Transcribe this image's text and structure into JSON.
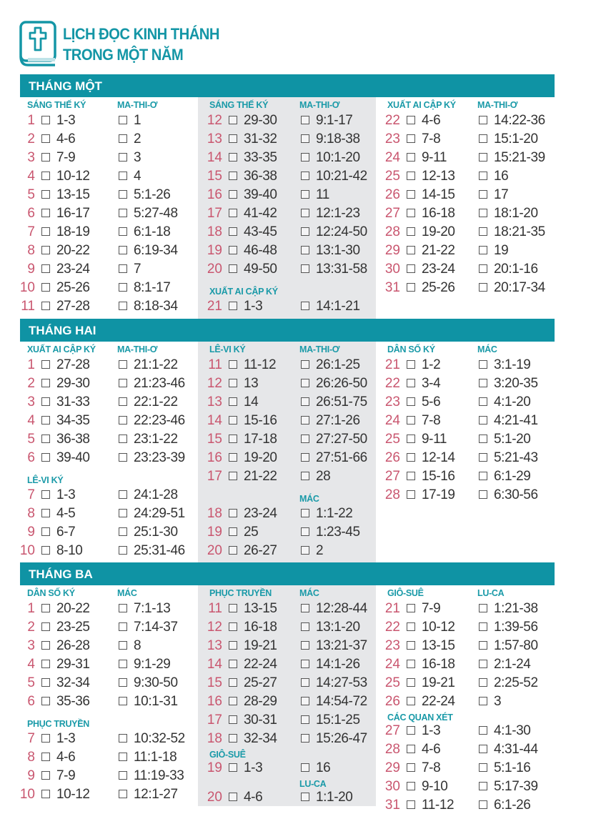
{
  "header": {
    "title_line1": "LỊCH ĐỌC KINH THÁNH",
    "title_line2": "TRONG MỘT NĂM",
    "logo_icon": "bible-cross-icon"
  },
  "colors": {
    "accent": "#0f93a4",
    "day_number": "#c9566f",
    "shaded_column": "#e6e7e9"
  },
  "months": [
    {
      "title": "THÁNG MỘT",
      "columns": [
        {
          "lines": [
            {
              "h": [
                "SÁNG THẾ KÝ",
                "MA-THI-Ơ"
              ]
            },
            {
              "d": "1",
              "ot": "1-3",
              "nt": "1"
            },
            {
              "d": "2",
              "ot": "4-6",
              "nt": "2"
            },
            {
              "d": "3",
              "ot": "7-9",
              "nt": "3"
            },
            {
              "d": "4",
              "ot": "10-12",
              "nt": "4"
            },
            {
              "d": "5",
              "ot": "13-15",
              "nt": "5:1-26"
            },
            {
              "d": "6",
              "ot": "16-17",
              "nt": "5:27-48"
            },
            {
              "d": "7",
              "ot": "18-19",
              "nt": "6:1-18"
            },
            {
              "d": "8",
              "ot": "20-22",
              "nt": "6:19-34"
            },
            {
              "d": "9",
              "ot": "23-24",
              "nt": "7"
            },
            {
              "d": "10",
              "ot": "25-26",
              "nt": "8:1-17"
            },
            {
              "d": "11",
              "ot": "27-28",
              "nt": "8:18-34"
            }
          ]
        },
        {
          "lines": [
            {
              "h": [
                "SÁNG THẾ KÝ",
                "MA-THI-Ơ"
              ]
            },
            {
              "d": "12",
              "ot": "29-30",
              "nt": "9:1-17"
            },
            {
              "d": "13",
              "ot": "31-32",
              "nt": "9:18-38"
            },
            {
              "d": "14",
              "ot": "33-35",
              "nt": "10:1-20"
            },
            {
              "d": "15",
              "ot": "36-38",
              "nt": "10:21-42"
            },
            {
              "d": "16",
              "ot": "39-40",
              "nt": "11"
            },
            {
              "d": "17",
              "ot": "41-42",
              "nt": "12:1-23"
            },
            {
              "d": "18",
              "ot": "43-45",
              "nt": "12:24-50"
            },
            {
              "d": "19",
              "ot": "46-48",
              "nt": "13:1-30"
            },
            {
              "d": "20",
              "ot": "49-50",
              "nt": "13:31-58"
            },
            {
              "h": [
                "XUẤT AI CẬP KÝ",
                ""
              ]
            },
            {
              "d": "21",
              "ot": "1-3",
              "nt": "14:1-21"
            }
          ]
        },
        {
          "lines": [
            {
              "h": [
                "XUẤT AI CẬP KÝ",
                "MA-THI-Ơ"
              ]
            },
            {
              "d": "22",
              "ot": "4-6",
              "nt": "14:22-36"
            },
            {
              "d": "23",
              "ot": "7-8",
              "nt": "15:1-20"
            },
            {
              "d": "24",
              "ot": "9-11",
              "nt": "15:21-39"
            },
            {
              "d": "25",
              "ot": "12-13",
              "nt": "16"
            },
            {
              "d": "26",
              "ot": "14-15",
              "nt": "17"
            },
            {
              "d": "27",
              "ot": "16-18",
              "nt": "18:1-20"
            },
            {
              "d": "28",
              "ot": "19-20",
              "nt": "18:21-35"
            },
            {
              "d": "29",
              "ot": "21-22",
              "nt": "19"
            },
            {
              "d": "30",
              "ot": "23-24",
              "nt": "20:1-16"
            },
            {
              "d": "31",
              "ot": "25-26",
              "nt": "20:17-34"
            }
          ]
        }
      ]
    },
    {
      "title": "THÁNG HAI",
      "columns": [
        {
          "lines": [
            {
              "h": [
                "XUẤT AI CẬP KÝ",
                "MA-THI-Ơ"
              ]
            },
            {
              "d": "1",
              "ot": "27-28",
              "nt": "21:1-22"
            },
            {
              "d": "2",
              "ot": "29-30",
              "nt": "21:23-46"
            },
            {
              "d": "3",
              "ot": "31-33",
              "nt": "22:1-22"
            },
            {
              "d": "4",
              "ot": "34-35",
              "nt": "22:23-46"
            },
            {
              "d": "5",
              "ot": "36-38",
              "nt": "23:1-22"
            },
            {
              "d": "6",
              "ot": "39-40",
              "nt": "23:23-39"
            },
            {
              "h": [
                "LÊ-VI KÝ",
                ""
              ]
            },
            {
              "d": "7",
              "ot": "1-3",
              "nt": "24:1-28"
            },
            {
              "d": "8",
              "ot": "4-5",
              "nt": "24:29-51"
            },
            {
              "d": "9",
              "ot": "6-7",
              "nt": "25:1-30"
            },
            {
              "d": "10",
              "ot": "8-10",
              "nt": "25:31-46"
            }
          ]
        },
        {
          "lines": [
            {
              "h": [
                "LÊ-VI KÝ",
                "MA-THI-Ơ"
              ]
            },
            {
              "d": "11",
              "ot": "11-12",
              "nt": "26:1-25"
            },
            {
              "d": "12",
              "ot": "13",
              "nt": "26:26-50"
            },
            {
              "d": "13",
              "ot": "14",
              "nt": "26:51-75"
            },
            {
              "d": "14",
              "ot": "15-16",
              "nt": "27:1-26"
            },
            {
              "d": "15",
              "ot": "17-18",
              "nt": "27:27-50"
            },
            {
              "d": "16",
              "ot": "19-20",
              "nt": "27:51-66"
            },
            {
              "d": "17",
              "ot": "21-22",
              "nt": "28"
            },
            {
              "h": [
                "",
                "MÁC"
              ]
            },
            {
              "d": "18",
              "ot": "23-24",
              "nt": "1:1-22"
            },
            {
              "d": "19",
              "ot": "25",
              "nt": "1:23-45"
            },
            {
              "d": "20",
              "ot": "26-27",
              "nt": "2"
            }
          ]
        },
        {
          "lines": [
            {
              "h": [
                "DÂN SỐ KÝ",
                "MÁC"
              ]
            },
            {
              "d": "21",
              "ot": "1-2",
              "nt": "3:1-19"
            },
            {
              "d": "22",
              "ot": "3-4",
              "nt": "3:20-35"
            },
            {
              "d": "23",
              "ot": "5-6",
              "nt": "4:1-20"
            },
            {
              "d": "24",
              "ot": "7-8",
              "nt": "4:21-41"
            },
            {
              "d": "25",
              "ot": "9-11",
              "nt": "5:1-20"
            },
            {
              "d": "26",
              "ot": "12-14",
              "nt": "5:21-43"
            },
            {
              "d": "27",
              "ot": "15-16",
              "nt": "6:1-29"
            },
            {
              "d": "28",
              "ot": "17-19",
              "nt": "6:30-56"
            }
          ]
        }
      ]
    },
    {
      "title": "THÁNG BA",
      "columns": [
        {
          "lines": [
            {
              "h": [
                "DÂN SỐ KÝ",
                "MÁC"
              ]
            },
            {
              "d": "1",
              "ot": "20-22",
              "nt": "7:1-13"
            },
            {
              "d": "2",
              "ot": "23-25",
              "nt": "7:14-37"
            },
            {
              "d": "3",
              "ot": "26-28",
              "nt": "8"
            },
            {
              "d": "4",
              "ot": "29-31",
              "nt": "9:1-29"
            },
            {
              "d": "5",
              "ot": "32-34",
              "nt": "9:30-50"
            },
            {
              "d": "6",
              "ot": "35-36",
              "nt": "10:1-31"
            },
            {
              "h": [
                "PHỤC TRUYỀN",
                ""
              ]
            },
            {
              "d": "7",
              "ot": "1-3",
              "nt": "10:32-52"
            },
            {
              "d": "8",
              "ot": "4-6",
              "nt": "11:1-18"
            },
            {
              "d": "9",
              "ot": "7-9",
              "nt": "11:19-33"
            },
            {
              "d": "10",
              "ot": "10-12",
              "nt": "12:1-27"
            }
          ]
        },
        {
          "lines": [
            {
              "h": [
                "PHỤC TRUYỀN",
                "MÁC"
              ]
            },
            {
              "d": "11",
              "ot": "13-15",
              "nt": "12:28-44"
            },
            {
              "d": "12",
              "ot": "16-18",
              "nt": "13:1-20"
            },
            {
              "d": "13",
              "ot": "19-21",
              "nt": "13:21-37"
            },
            {
              "d": "14",
              "ot": "22-24",
              "nt": "14:1-26"
            },
            {
              "d": "15",
              "ot": "25-27",
              "nt": "14:27-53"
            },
            {
              "d": "16",
              "ot": "28-29",
              "nt": "14:54-72"
            },
            {
              "d": "17",
              "ot": "30-31",
              "nt": "15:1-25"
            },
            {
              "d": "18",
              "ot": "32-34",
              "nt": "15:26-47"
            },
            {
              "h": [
                "GIÔ-SUÊ",
                ""
              ]
            },
            {
              "d": "19",
              "ot": "1-3",
              "nt": "16"
            },
            {
              "h": [
                "",
                "LU-CA"
              ]
            },
            {
              "d": "20",
              "ot": "4-6",
              "nt": "1:1-20"
            }
          ]
        },
        {
          "lines": [
            {
              "h": [
                "GIÔ-SUÊ",
                "LU-CA"
              ]
            },
            {
              "d": "21",
              "ot": "7-9",
              "nt": "1:21-38"
            },
            {
              "d": "22",
              "ot": "10-12",
              "nt": "1:39-56"
            },
            {
              "d": "23",
              "ot": "13-15",
              "nt": "1:57-80"
            },
            {
              "d": "24",
              "ot": "16-18",
              "nt": "2:1-24"
            },
            {
              "d": "25",
              "ot": "19-21",
              "nt": "2:25-52"
            },
            {
              "d": "26",
              "ot": "22-24",
              "nt": "3"
            },
            {
              "h": [
                "CÁC QUAN XÉT",
                ""
              ]
            },
            {
              "d": "27",
              "ot": "1-3",
              "nt": "4:1-30"
            },
            {
              "d": "28",
              "ot": "4-6",
              "nt": "4:31-44"
            },
            {
              "d": "29",
              "ot": "7-8",
              "nt": "5:1-16"
            },
            {
              "d": "30",
              "ot": "9-10",
              "nt": "5:17-39"
            },
            {
              "d": "31",
              "ot": "11-12",
              "nt": "6:1-26"
            }
          ]
        }
      ]
    }
  ]
}
